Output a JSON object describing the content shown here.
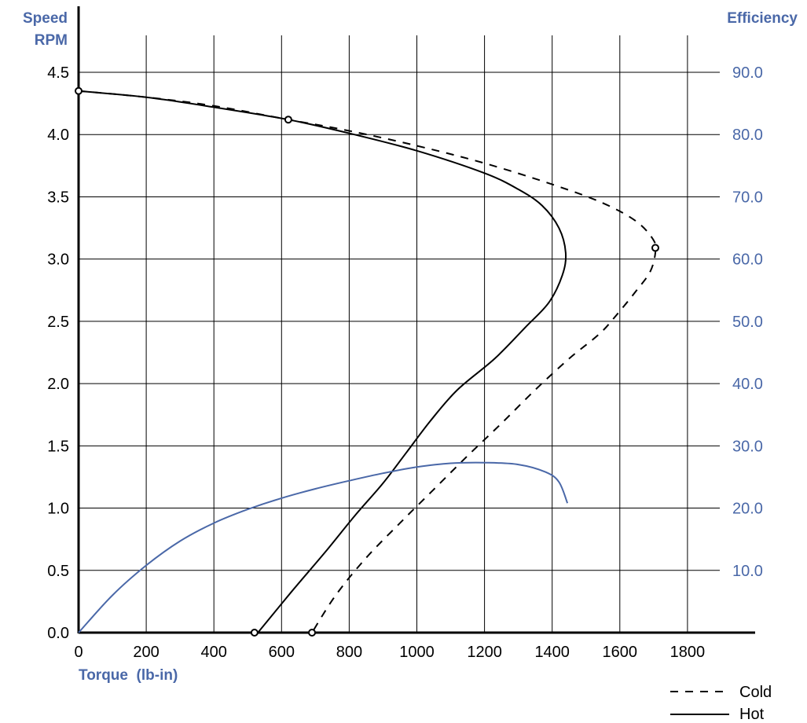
{
  "chart_data": {
    "type": "line",
    "left_axis_title": [
      "Speed",
      "RPM"
    ],
    "right_axis_title": "Efficiency",
    "x_axis_title": "Torque  (lb-in)",
    "xlim": [
      0,
      2000
    ],
    "ylim_left": [
      0,
      4.5
    ],
    "ylim_right": [
      0,
      90
    ],
    "x_tick_labels": [
      "0",
      "200",
      "400",
      "600",
      "800",
      "1000",
      "1200",
      "1400",
      "1600",
      "1800"
    ],
    "left_tick_labels": [
      "0.0",
      "0.5",
      "1.0",
      "1.5",
      "2.0",
      "2.5",
      "3.0",
      "3.5",
      "4.0",
      "4.5"
    ],
    "right_tick_labels": [
      "10.0",
      "20.0",
      "30.0",
      "40.0",
      "50.0",
      "60.0",
      "70.0",
      "80.0",
      "90.0"
    ],
    "grid": true,
    "legend": {
      "placement": "bottom-right",
      "items": [
        {
          "label": "Cold",
          "style": "dashed"
        },
        {
          "label": "Hot",
          "style": "solid"
        }
      ]
    },
    "colors": {
      "speed": "#000000",
      "efficiency": "#4a68a8",
      "axis_text_blue": "#4a68a8"
    },
    "series": [
      {
        "axis": "left",
        "style": "dashed",
        "points": [
          [
            0,
            4.35
          ],
          [
            200,
            4.3
          ],
          [
            400,
            4.23
          ],
          [
            620,
            4.12
          ],
          [
            800,
            4.03
          ],
          [
            1000,
            3.91
          ],
          [
            1200,
            3.77
          ],
          [
            1400,
            3.6
          ],
          [
            1550,
            3.45
          ],
          [
            1650,
            3.3
          ],
          [
            1700,
            3.15
          ],
          [
            1705,
            3.05
          ],
          [
            1690,
            2.9
          ],
          [
            1650,
            2.75
          ],
          [
            1590,
            2.55
          ],
          [
            1540,
            2.4
          ],
          [
            1450,
            2.2
          ],
          [
            1350,
            1.95
          ],
          [
            1250,
            1.68
          ],
          [
            1150,
            1.42
          ],
          [
            1050,
            1.15
          ],
          [
            950,
            0.88
          ],
          [
            850,
            0.6
          ],
          [
            760,
            0.3
          ],
          [
            690,
            0.0
          ]
        ]
      },
      {
        "axis": "left",
        "style": "solid",
        "points": [
          [
            0,
            4.35
          ],
          [
            200,
            4.3
          ],
          [
            400,
            4.22
          ],
          [
            620,
            4.12
          ],
          [
            800,
            4.01
          ],
          [
            1000,
            3.87
          ],
          [
            1200,
            3.69
          ],
          [
            1300,
            3.56
          ],
          [
            1370,
            3.43
          ],
          [
            1420,
            3.25
          ],
          [
            1440,
            3.05
          ],
          [
            1430,
            2.87
          ],
          [
            1390,
            2.65
          ],
          [
            1320,
            2.45
          ],
          [
            1230,
            2.2
          ],
          [
            1120,
            1.95
          ],
          [
            1040,
            1.7
          ],
          [
            970,
            1.45
          ],
          [
            900,
            1.2
          ],
          [
            820,
            0.95
          ],
          [
            730,
            0.65
          ],
          [
            630,
            0.33
          ],
          [
            530,
            0.0
          ]
        ]
      },
      {
        "axis": "right",
        "style": "solid",
        "points": [
          [
            0,
            0
          ],
          [
            100,
            6
          ],
          [
            200,
            10.8
          ],
          [
            300,
            14.7
          ],
          [
            400,
            17.6
          ],
          [
            500,
            19.8
          ],
          [
            600,
            21.6
          ],
          [
            700,
            23.1
          ],
          [
            800,
            24.4
          ],
          [
            900,
            25.6
          ],
          [
            1000,
            26.6
          ],
          [
            1100,
            27.2
          ],
          [
            1200,
            27.3
          ],
          [
            1300,
            27.0
          ],
          [
            1380,
            25.8
          ],
          [
            1420,
            24.2
          ],
          [
            1445,
            20.8
          ]
        ]
      }
    ],
    "markers": [
      [
        0,
        4.35
      ],
      [
        620,
        4.12
      ],
      [
        1705,
        3.09
      ],
      [
        520,
        0.0
      ],
      [
        690,
        0.0
      ]
    ]
  }
}
